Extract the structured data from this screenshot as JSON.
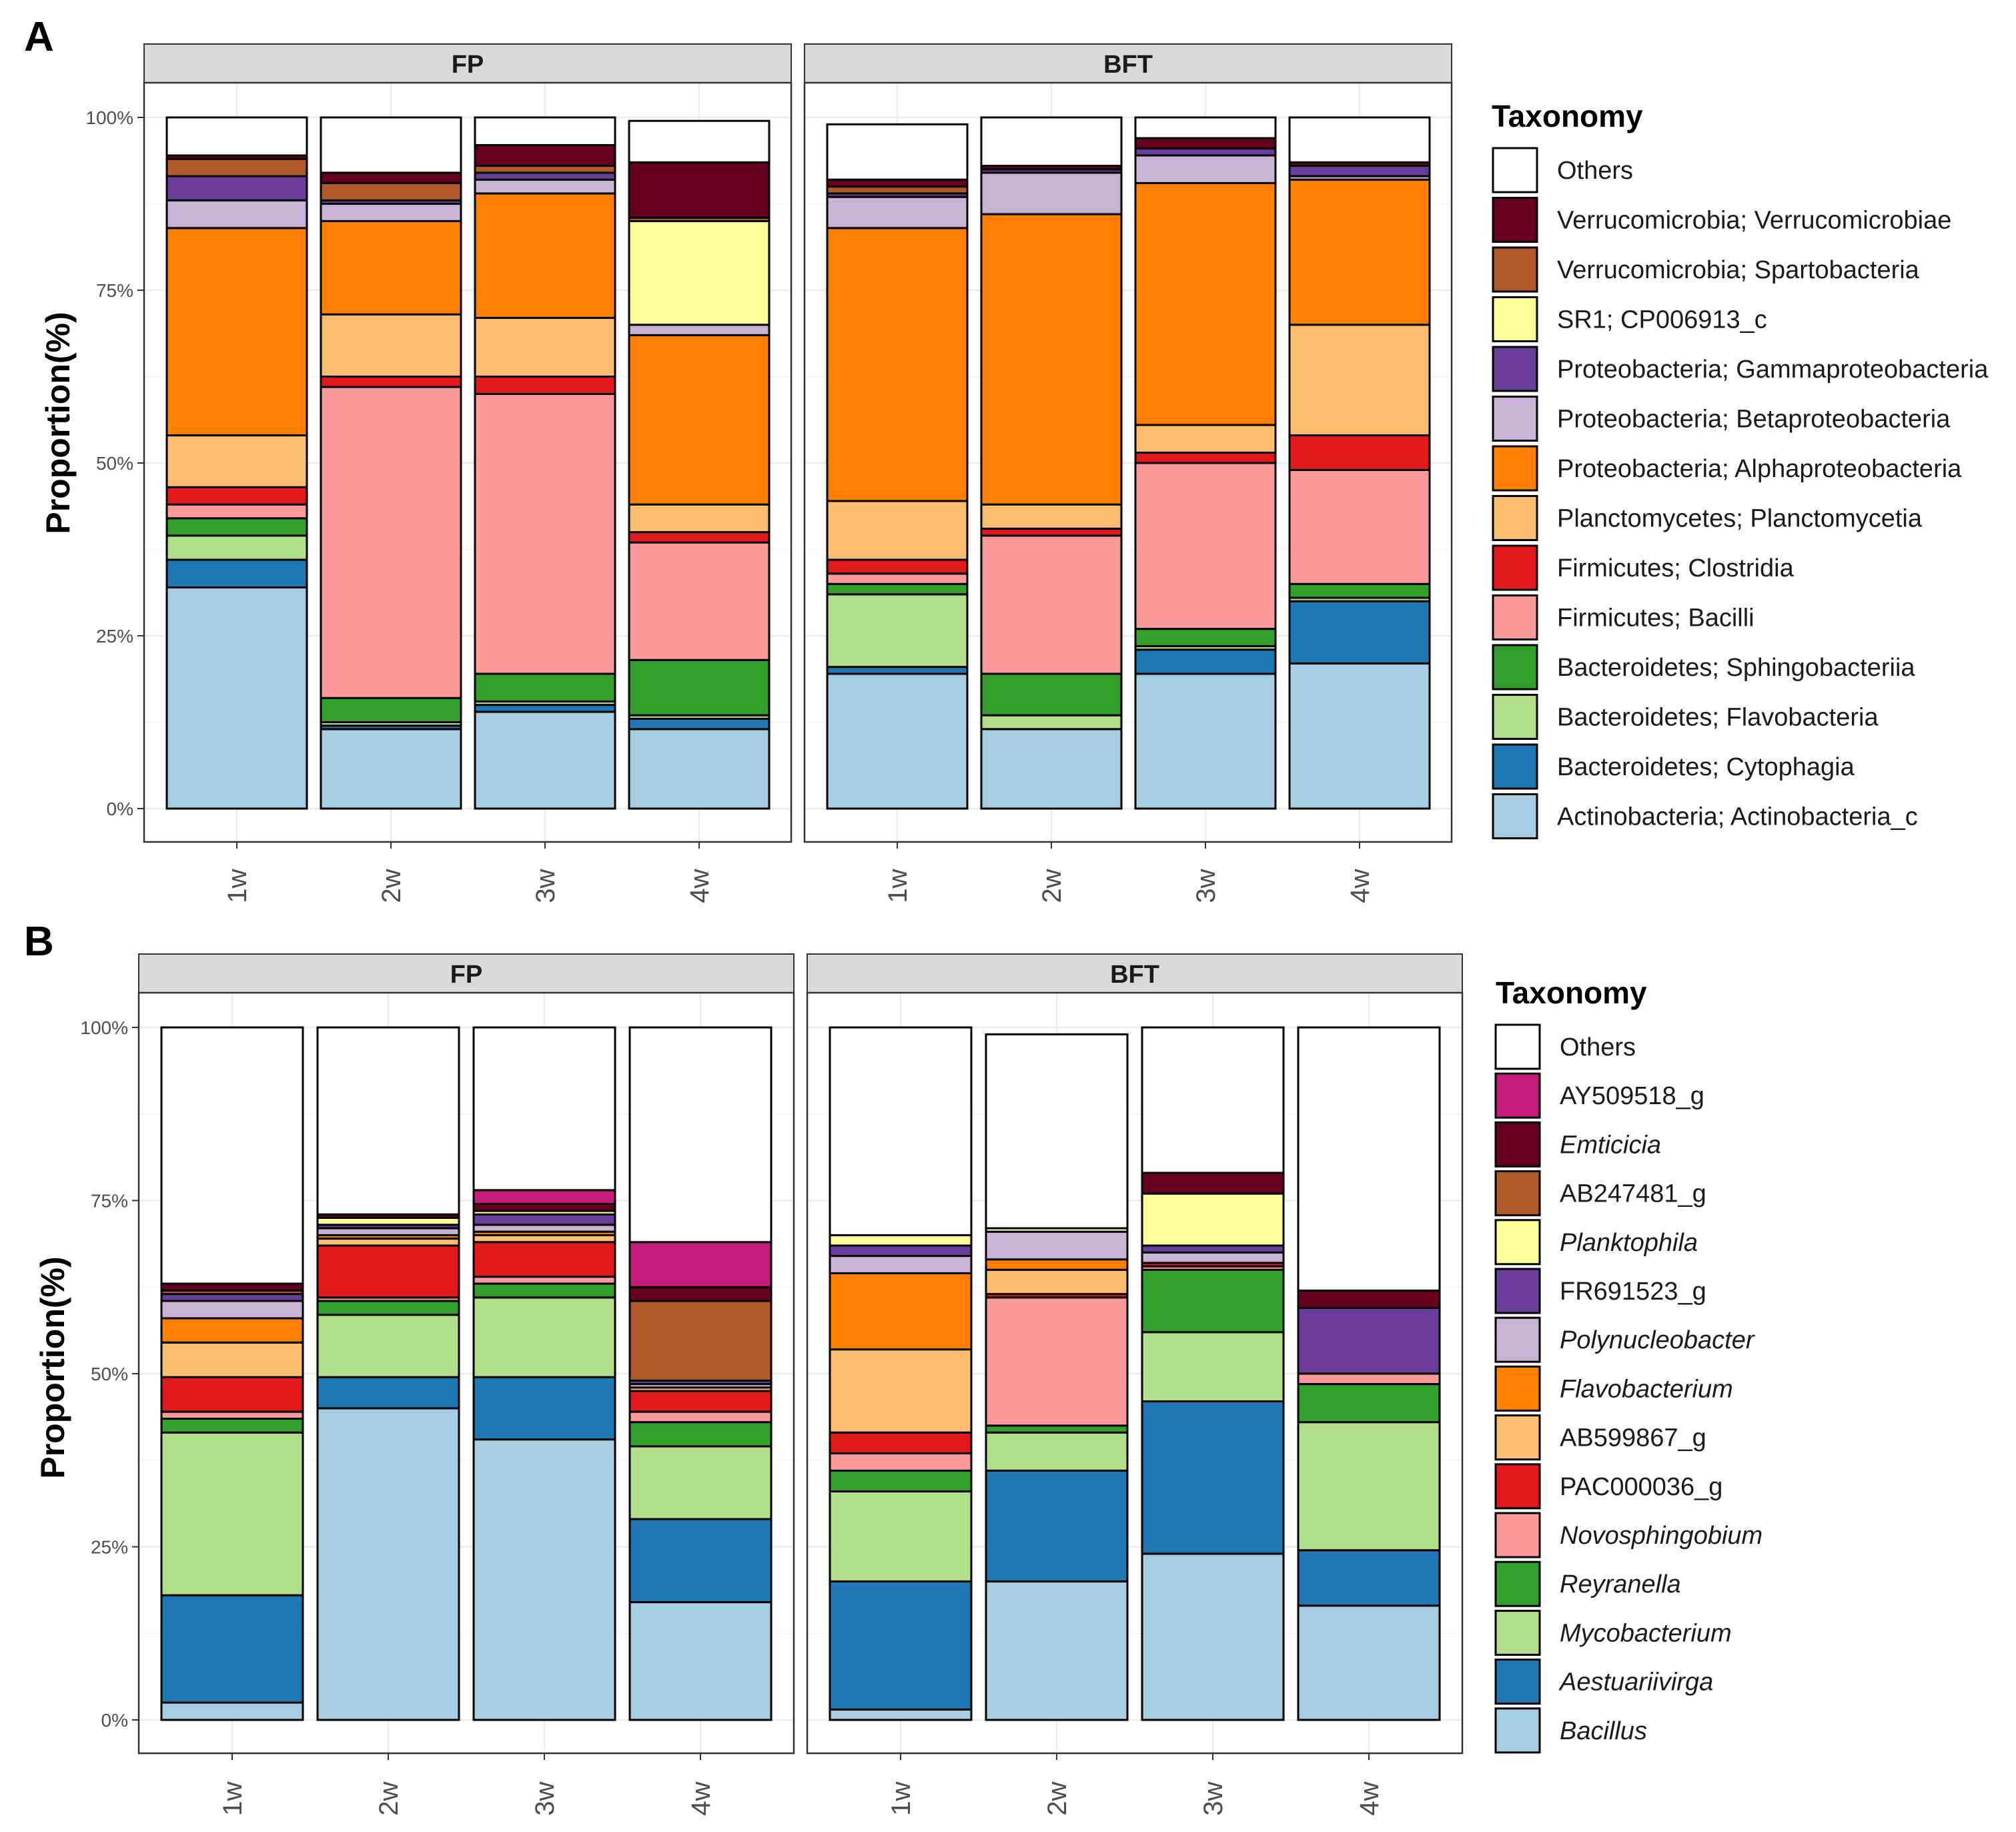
{
  "y_ticks": [
    "0%",
    "25%",
    "50%",
    "75%",
    "100%"
  ],
  "panels": [
    {
      "panel_label": "A",
      "ylabel": "Proportion(%)",
      "legend_title": "Taxonomy",
      "facets": [
        "FP",
        "BFT"
      ],
      "categories": [
        "1w",
        "2w",
        "3w",
        "4w"
      ],
      "taxa": [
        {
          "name": "Actinobacteria; Actinobacteria_c",
          "color": "#a6cee3",
          "italic": false
        },
        {
          "name": "Bacteroidetes; Cytophagia",
          "color": "#1f78b4",
          "italic": false
        },
        {
          "name": "Bacteroidetes; Flavobacteria",
          "color": "#b2df8a",
          "italic": false
        },
        {
          "name": "Bacteroidetes; Sphingobacteriia",
          "color": "#33a02c",
          "italic": false
        },
        {
          "name": "Firmicutes; Bacilli",
          "color": "#fb9a99",
          "italic": false
        },
        {
          "name": "Firmicutes; Clostridia",
          "color": "#e31a1c",
          "italic": false
        },
        {
          "name": "Planctomycetes; Planctomycetia",
          "color": "#fdbf6f",
          "italic": false
        },
        {
          "name": "Proteobacteria; Alphaproteobacteria",
          "color": "#ff7f00",
          "italic": false
        },
        {
          "name": "Proteobacteria; Betaproteobacteria",
          "color": "#cab2d6",
          "italic": false
        },
        {
          "name": "Proteobacteria; Gammaproteobacteria",
          "color": "#6a3d9a",
          "italic": false
        },
        {
          "name": "SR1; CP006913_c",
          "color": "#ffff99",
          "italic": false
        },
        {
          "name": "Verrucomicrobia; Spartobacteria",
          "color": "#b15928",
          "italic": false
        },
        {
          "name": "Verrucomicrobia; Verrucomicrobiae",
          "color": "#67001f",
          "italic": false
        },
        {
          "name": "Others",
          "color": "#ffffff",
          "italic": false
        }
      ]
    },
    {
      "panel_label": "B",
      "ylabel": "Proportion(%)",
      "legend_title": "Taxonomy",
      "facets": [
        "FP",
        "BFT"
      ],
      "categories": [
        "1w",
        "2w",
        "3w",
        "4w"
      ],
      "taxa": [
        {
          "name": "Bacillus",
          "color": "#a6cee3",
          "italic": true
        },
        {
          "name": "Aestuariivirga",
          "color": "#1f78b4",
          "italic": true
        },
        {
          "name": "Mycobacterium",
          "color": "#b2df8a",
          "italic": true
        },
        {
          "name": "Reyranella",
          "color": "#33a02c",
          "italic": true
        },
        {
          "name": "Novosphingobium",
          "color": "#fb9a99",
          "italic": true
        },
        {
          "name": "PAC000036_g",
          "color": "#e31a1c",
          "italic": false
        },
        {
          "name": "AB599867_g",
          "color": "#fdbf6f",
          "italic": false
        },
        {
          "name": "Flavobacterium",
          "color": "#ff7f00",
          "italic": true
        },
        {
          "name": "Polynucleobacter",
          "color": "#cab2d6",
          "italic": true
        },
        {
          "name": "FR691523_g",
          "color": "#6a3d9a",
          "italic": false
        },
        {
          "name": "Planktophila",
          "color": "#ffff99",
          "italic": true
        },
        {
          "name": "AB247481_g",
          "color": "#b15928",
          "italic": false
        },
        {
          "name": "Emticicia",
          "color": "#67001f",
          "italic": true
        },
        {
          "name": "AY509518_g",
          "color": "#c51b7d",
          "italic": false
        },
        {
          "name": "Others",
          "color": "#ffffff",
          "italic": false
        }
      ]
    }
  ],
  "chart_data": [
    {
      "type": "bar",
      "stacked": true,
      "title": "A",
      "xlabel": "",
      "ylabel": "Proportion(%)",
      "ylim": [
        0,
        100
      ],
      "facets": [
        "FP",
        "BFT"
      ],
      "categories": [
        "1w",
        "2w",
        "3w",
        "4w"
      ],
      "series": [
        {
          "name": "Actinobacteria; Actinobacteria_c",
          "values": {
            "FP": [
              32,
              11.5,
              14,
              11.5
            ],
            "BFT": [
              19.5,
              11.5,
              19.5,
              21
            ]
          }
        },
        {
          "name": "Bacteroidetes; Cytophagia",
          "values": {
            "FP": [
              4,
              0.5,
              1,
              1.5
            ],
            "BFT": [
              1,
              0,
              3.5,
              9
            ]
          }
        },
        {
          "name": "Bacteroidetes; Flavobacteria",
          "values": {
            "FP": [
              3.5,
              0.5,
              0.5,
              0.5
            ],
            "BFT": [
              10.5,
              2,
              0.5,
              0.5
            ]
          }
        },
        {
          "name": "Bacteroidetes; Sphingobacteriia",
          "values": {
            "FP": [
              2.5,
              3.5,
              4,
              8
            ],
            "BFT": [
              1.5,
              6,
              2.5,
              2
            ]
          }
        },
        {
          "name": "Firmicutes; Bacilli",
          "values": {
            "FP": [
              2,
              45,
              40.5,
              17
            ],
            "BFT": [
              1.5,
              20,
              24,
              16.5
            ]
          }
        },
        {
          "name": "Firmicutes; Clostridia",
          "values": {
            "FP": [
              2.5,
              1.5,
              2.5,
              1.5
            ],
            "BFT": [
              2,
              1,
              1.5,
              5
            ]
          }
        },
        {
          "name": "Planctomycetes; Planctomycetia",
          "values": {
            "FP": [
              7.5,
              9,
              8.5,
              4
            ],
            "BFT": [
              8.5,
              3.5,
              4,
              16
            ]
          }
        },
        {
          "name": "Proteobacteria; Alphaproteobacteria",
          "values": {
            "FP": [
              30,
              13.5,
              18,
              24.5
            ],
            "BFT": [
              39.5,
              42,
              35,
              21
            ]
          }
        },
        {
          "name": "Proteobacteria; Betaproteobacteria",
          "values": {
            "FP": [
              4,
              2.5,
              2,
              1.5
            ],
            "BFT": [
              4.5,
              6,
              4,
              0.5
            ]
          }
        },
        {
          "name": "Proteobacteria; Gammaproteobacteria",
          "values": {
            "FP": [
              3.5,
              0.5,
              1,
              0
            ],
            "BFT": [
              0.5,
              0.5,
              1,
              1.5
            ]
          }
        },
        {
          "name": "SR1; CP006913_c",
          "values": {
            "FP": [
              0,
              0,
              0,
              15
            ],
            "BFT": [
              0,
              0,
              0,
              0
            ]
          }
        },
        {
          "name": "Verrucomicrobia; Spartobacteria",
          "values": {
            "FP": [
              2.5,
              2.5,
              1,
              0.5
            ],
            "BFT": [
              1,
              0,
              0,
              0
            ]
          }
        },
        {
          "name": "Verrucomicrobia; Verrucomicrobiae",
          "values": {
            "FP": [
              0.5,
              1.5,
              3,
              8
            ],
            "BFT": [
              1,
              0.5,
              1.5,
              0.5
            ]
          }
        },
        {
          "name": "Others",
          "values": {
            "FP": [
              5.5,
              8,
              4,
              6
            ],
            "BFT": [
              8,
              7,
              3,
              6.5
            ]
          }
        }
      ]
    },
    {
      "type": "bar",
      "stacked": true,
      "title": "B",
      "xlabel": "",
      "ylabel": "Proportion(%)",
      "ylim": [
        0,
        100
      ],
      "facets": [
        "FP",
        "BFT"
      ],
      "categories": [
        "1w",
        "2w",
        "3w",
        "4w"
      ],
      "series": [
        {
          "name": "Bacillus",
          "values": {
            "FP": [
              2.5,
              45,
              40.5,
              17
            ],
            "BFT": [
              1.5,
              20,
              24,
              16.5
            ]
          }
        },
        {
          "name": "Aestuariivirga",
          "values": {
            "FP": [
              15.5,
              4.5,
              9,
              12
            ],
            "BFT": [
              18.5,
              16,
              22,
              8
            ]
          }
        },
        {
          "name": "Mycobacterium",
          "values": {
            "FP": [
              23.5,
              9,
              11.5,
              10.5
            ],
            "BFT": [
              13,
              5.5,
              10,
              18.5
            ]
          }
        },
        {
          "name": "Reyranella",
          "values": {
            "FP": [
              2,
              2,
              2,
              3.5
            ],
            "BFT": [
              3,
              1,
              9,
              5.5
            ]
          }
        },
        {
          "name": "Novosphingobium",
          "values": {
            "FP": [
              1,
              0.5,
              1,
              1.5
            ],
            "BFT": [
              2.5,
              18.5,
              0.5,
              1.5
            ]
          }
        },
        {
          "name": "PAC000036_g",
          "values": {
            "FP": [
              5,
              7.5,
              5,
              3
            ],
            "BFT": [
              3,
              0.5,
              0.5,
              0
            ]
          }
        },
        {
          "name": "AB599867_g",
          "values": {
            "FP": [
              5,
              1,
              1,
              0.5
            ],
            "BFT": [
              12,
              3.5,
              0,
              0
            ]
          }
        },
        {
          "name": "Flavobacterium",
          "values": {
            "FP": [
              3.5,
              0.5,
              0.5,
              0
            ],
            "BFT": [
              11,
              1.5,
              0,
              0
            ]
          }
        },
        {
          "name": "Polynucleobacter",
          "values": {
            "FP": [
              2.5,
              1,
              1,
              0.5
            ],
            "BFT": [
              2.5,
              4,
              1.5,
              0
            ]
          }
        },
        {
          "name": "FR691523_g",
          "values": {
            "FP": [
              1,
              0.5,
              1.5,
              0.5
            ],
            "BFT": [
              1.5,
              0,
              1,
              9.5
            ]
          }
        },
        {
          "name": "Planktophila",
          "values": {
            "FP": [
              0,
              1,
              0.5,
              0
            ],
            "BFT": [
              1.5,
              0.5,
              7.5,
              0
            ]
          }
        },
        {
          "name": "AB247481_g",
          "values": {
            "FP": [
              0.5,
              0,
              0,
              11.5
            ],
            "BFT": [
              0,
              0,
              0,
              0
            ]
          }
        },
        {
          "name": "Emticicia",
          "values": {
            "FP": [
              1,
              0.5,
              1,
              2
            ],
            "BFT": [
              0,
              0,
              3,
              2.5
            ]
          }
        },
        {
          "name": "AY509518_g",
          "values": {
            "FP": [
              0,
              0,
              2,
              6.5
            ],
            "BFT": [
              0,
              0,
              0,
              0
            ]
          }
        },
        {
          "name": "Others",
          "values": {
            "FP": [
              37,
              27,
              23.5,
              31
            ],
            "BFT": [
              30,
              28,
              21,
              38
            ]
          }
        }
      ]
    }
  ]
}
